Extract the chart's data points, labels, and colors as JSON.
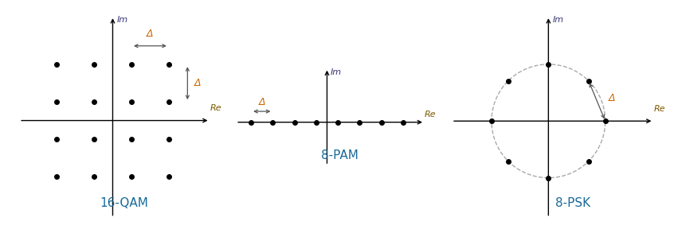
{
  "fig_width": 8.46,
  "fig_height": 2.88,
  "dpi": 100,
  "background_color": "#ffffff",
  "axis_color": "#000000",
  "dot_color": "#000000",
  "dot_size": 4,
  "label_color_im": "#3a3a7a",
  "label_color_re": "#7a5a00",
  "label_color_title": "#1a6a9a",
  "delta_color": "#cc6600",
  "arrow_color": "#555555",
  "titles": [
    "16-QAM",
    "8-PAM",
    "8-PSK"
  ],
  "im_label": "Im",
  "re_label": "Re",
  "delta_label": "Δ"
}
